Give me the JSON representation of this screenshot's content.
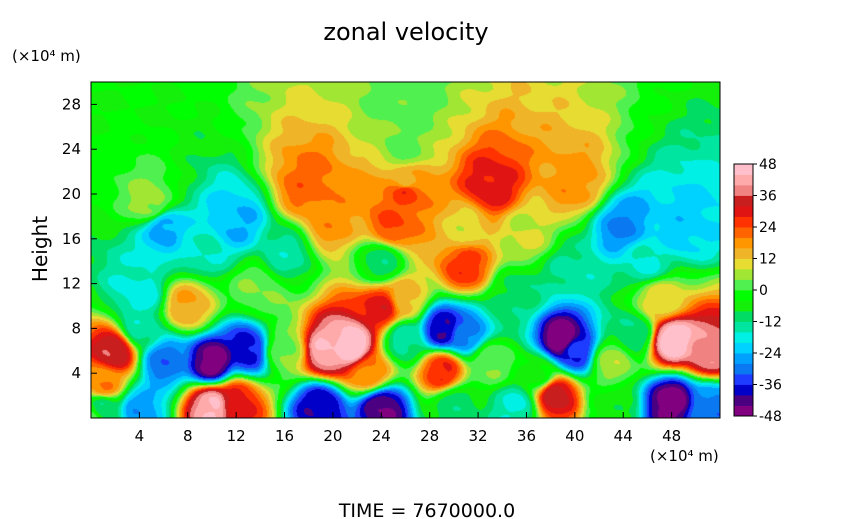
{
  "chart_data": {
    "type": "heatmap",
    "title": "zonal velocity",
    "ylabel": "Height",
    "y_unit": "(×10⁴ m)",
    "x_unit": "(×10⁴ m)",
    "xlim": [
      0,
      52
    ],
    "ylim": [
      0,
      30
    ],
    "x_ticks": [
      4,
      8,
      12,
      16,
      20,
      24,
      28,
      32,
      36,
      40,
      44,
      48
    ],
    "y_ticks": [
      4,
      8,
      12,
      16,
      20,
      24,
      28
    ],
    "colorbar": {
      "min": -48,
      "max": 48,
      "step": 4,
      "ticks": [
        48,
        36,
        24,
        12,
        0,
        -12,
        -24,
        -36,
        -48
      ],
      "colors": [
        "#800080",
        "#4b0082",
        "#0000c8",
        "#1e3cff",
        "#0a78f0",
        "#00a0ff",
        "#00d2ff",
        "#00f0e6",
        "#00e6a0",
        "#00dc64",
        "#14f00a",
        "#00ff00",
        "#50f050",
        "#a0e632",
        "#e6dc32",
        "#f0b428",
        "#ff9600",
        "#ff6400",
        "#ff3200",
        "#e11414",
        "#c81e1e",
        "#f08282",
        "#ffaaaa",
        "#ffc0cb"
      ]
    },
    "features": [
      {
        "x": 0,
        "y": 0,
        "value": 0
      },
      {
        "x": 26,
        "y": 28,
        "value": 2
      },
      {
        "x": 26,
        "y": 24,
        "value": 3
      },
      {
        "x": 26,
        "y": 21,
        "value": 14
      },
      {
        "x": 26,
        "y": 20.2,
        "value": 26
      },
      {
        "x": 18,
        "y": 20.5,
        "value": 22
      },
      {
        "x": 33,
        "y": 20.5,
        "value": 30
      },
      {
        "x": 40,
        "y": 20.8,
        "value": 18
      },
      {
        "x": 5,
        "y": 19,
        "value": 6
      },
      {
        "x": 6,
        "y": 17,
        "value": -26
      },
      {
        "x": 12,
        "y": 17.5,
        "value": -24
      },
      {
        "x": 20,
        "y": 17.5,
        "value": 18
      },
      {
        "x": 25,
        "y": 17,
        "value": 24
      },
      {
        "x": 31,
        "y": 17,
        "value": 10
      },
      {
        "x": 36,
        "y": 16.5,
        "value": 8
      },
      {
        "x": 44,
        "y": 17,
        "value": -28
      },
      {
        "x": 49,
        "y": 17,
        "value": -22
      },
      {
        "x": 9,
        "y": 15,
        "value": -16
      },
      {
        "x": 16,
        "y": 14.5,
        "value": -14
      },
      {
        "x": 24,
        "y": 14,
        "value": -10
      },
      {
        "x": 31,
        "y": 13.5,
        "value": 26
      },
      {
        "x": 40,
        "y": 13,
        "value": -14
      },
      {
        "x": 46,
        "y": 14,
        "value": -16
      },
      {
        "x": 4,
        "y": 11,
        "value": -18
      },
      {
        "x": 14,
        "y": 11.5,
        "value": 4
      },
      {
        "x": 26,
        "y": 10.5,
        "value": 14
      },
      {
        "x": 35,
        "y": 11,
        "value": -10
      },
      {
        "x": 47,
        "y": 10.5,
        "value": 10
      },
      {
        "x": 24,
        "y": 9.8,
        "value": 30
      },
      {
        "x": 8,
        "y": 10,
        "value": 16
      },
      {
        "x": 2,
        "y": 6,
        "value": 36
      },
      {
        "x": 1,
        "y": 3,
        "value": 20
      },
      {
        "x": 6,
        "y": 5,
        "value": -30
      },
      {
        "x": 10,
        "y": 5,
        "value": -46
      },
      {
        "x": 13,
        "y": 6,
        "value": -38
      },
      {
        "x": 4,
        "y": 8,
        "value": -14
      },
      {
        "x": 16,
        "y": 6,
        "value": 4
      },
      {
        "x": 19.5,
        "y": 6,
        "value": 44
      },
      {
        "x": 21.5,
        "y": 6.5,
        "value": 48
      },
      {
        "x": 23,
        "y": 4,
        "value": 20
      },
      {
        "x": 26,
        "y": 7,
        "value": -14
      },
      {
        "x": 29,
        "y": 8,
        "value": -40
      },
      {
        "x": 31,
        "y": 7.5,
        "value": -30
      },
      {
        "x": 29,
        "y": 4.2,
        "value": 28
      },
      {
        "x": 33,
        "y": 5,
        "value": 4
      },
      {
        "x": 37,
        "y": 4,
        "value": -4
      },
      {
        "x": 39,
        "y": 7,
        "value": -48
      },
      {
        "x": 40,
        "y": 6,
        "value": -36
      },
      {
        "x": 43,
        "y": 5,
        "value": 6
      },
      {
        "x": 45,
        "y": 7.5,
        "value": -12
      },
      {
        "x": 48,
        "y": 7,
        "value": 48
      },
      {
        "x": 51,
        "y": 6,
        "value": 40
      },
      {
        "x": 10,
        "y": 1,
        "value": 44
      },
      {
        "x": 12,
        "y": 1.5,
        "value": 30
      },
      {
        "x": 4,
        "y": 0.8,
        "value": -26
      },
      {
        "x": 1,
        "y": 0.8,
        "value": -12
      },
      {
        "x": 19,
        "y": 1,
        "value": -40
      },
      {
        "x": 24,
        "y": 1,
        "value": -44
      },
      {
        "x": 30,
        "y": 1.2,
        "value": -10
      },
      {
        "x": 35,
        "y": 1,
        "value": -16
      },
      {
        "x": 38.5,
        "y": 2,
        "value": 34
      },
      {
        "x": 43,
        "y": 1,
        "value": -6
      },
      {
        "x": 48,
        "y": 1.5,
        "value": -46
      },
      {
        "x": 51,
        "y": 1,
        "value": -30
      }
    ]
  },
  "footer": {
    "time_label": "TIME = 7670000.0"
  }
}
